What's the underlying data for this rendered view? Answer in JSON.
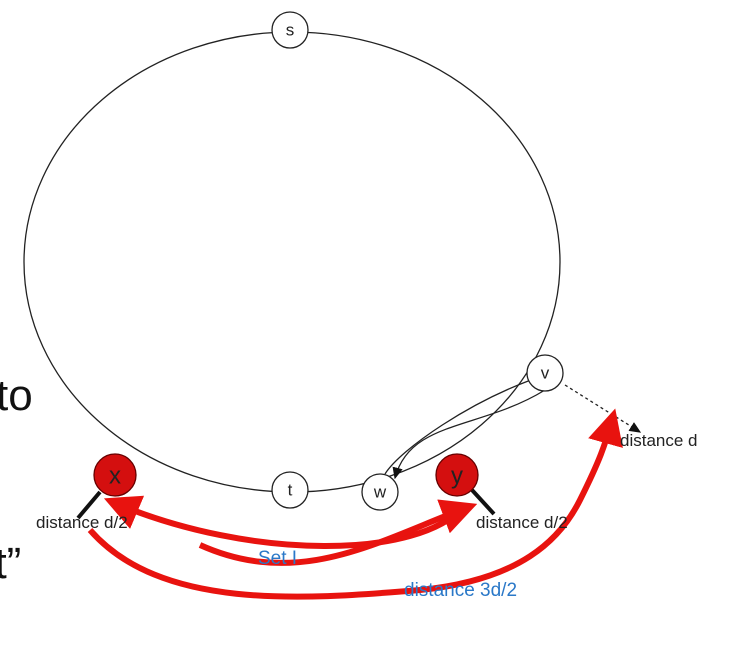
{
  "nodes": [
    {
      "label": "s"
    },
    {
      "label": "v"
    },
    {
      "label": "x"
    },
    {
      "label": "y"
    },
    {
      "label": "w"
    },
    {
      "label": "t"
    }
  ],
  "labels": {
    "distance_d": "distance d",
    "distance_left": "distance d/2",
    "distance_right": "distance d/2",
    "set": "Set I",
    "distance_3d": "distance 3d/2"
  },
  "slide_text": [
    "to",
    "f t”"
  ]
}
